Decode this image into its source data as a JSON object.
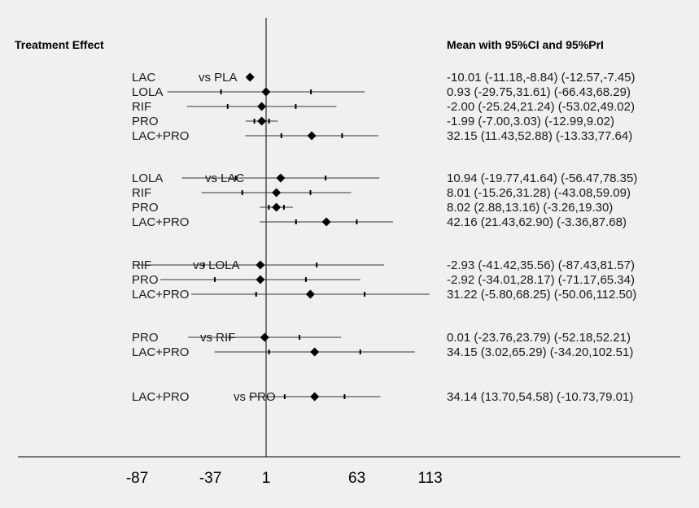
{
  "chart_data": {
    "type": "forest",
    "title": "",
    "header_left": "Treatment Effect",
    "header_right": "Mean with 95%CI and 95%PrI",
    "x_ticks": [
      {
        "value": -87,
        "label": "-87"
      },
      {
        "value": -37,
        "label": "-37"
      },
      {
        "value": 1,
        "label": "1"
      },
      {
        "value": 63,
        "label": "63"
      },
      {
        "value": 113,
        "label": "113"
      }
    ],
    "reference_line": 1,
    "groups": [
      {
        "comparator": "vs PLA",
        "rows": [
          {
            "treatment": "LAC",
            "mean": -10.01,
            "ci": [
              -11.18,
              -8.84
            ],
            "pri": [
              -12.57,
              -7.45
            ],
            "text": "-10.01 (-11.18,-8.84)  (-12.57,-7.45)"
          },
          {
            "treatment": "LOLA",
            "mean": 0.93,
            "ci": [
              -29.75,
              31.61
            ],
            "pri": [
              -66.43,
              68.29
            ],
            "text": "0.93 (-29.75,31.61)  (-66.43,68.29)"
          },
          {
            "treatment": "RIF",
            "mean": -2.0,
            "ci": [
              -25.24,
              21.24
            ],
            "pri": [
              -53.02,
              49.02
            ],
            "text": "-2.00 (-25.24,21.24)  (-53.02,49.02)"
          },
          {
            "treatment": "PRO",
            "mean": -1.99,
            "ci": [
              -7.0,
              3.03
            ],
            "pri": [
              -12.99,
              9.02
            ],
            "text": "-1.99 (-7.00,3.03)  (-12.99,9.02)"
          },
          {
            "treatment": "LAC+PRO",
            "mean": 32.15,
            "ci": [
              11.43,
              52.88
            ],
            "pri": [
              -13.33,
              77.64
            ],
            "text": "32.15 (11.43,52.88)  (-13.33,77.64)"
          }
        ]
      },
      {
        "comparator": "vs LAC",
        "rows": [
          {
            "treatment": "LOLA",
            "mean": 10.94,
            "ci": [
              -19.77,
              41.64
            ],
            "pri": [
              -56.47,
              78.35
            ],
            "text": "10.94 (-19.77,41.64)  (-56.47,78.35)"
          },
          {
            "treatment": "RIF",
            "mean": 8.01,
            "ci": [
              -15.26,
              31.28
            ],
            "pri": [
              -43.08,
              59.09
            ],
            "text": "8.01 (-15.26,31.28)  (-43.08,59.09)"
          },
          {
            "treatment": "PRO",
            "mean": 8.02,
            "ci": [
              2.88,
              13.16
            ],
            "pri": [
              -3.26,
              19.3
            ],
            "text": "8.02 (2.88,13.16)  (-3.26,19.30)"
          },
          {
            "treatment": "LAC+PRO",
            "mean": 42.16,
            "ci": [
              21.43,
              62.9
            ],
            "pri": [
              -3.36,
              87.68
            ],
            "text": "42.16 (21.43,62.90)  (-3.36,87.68)"
          }
        ]
      },
      {
        "comparator": "vs LOLA",
        "rows": [
          {
            "treatment": "RIF",
            "mean": -2.93,
            "ci": [
              -41.42,
              35.56
            ],
            "pri": [
              -87.43,
              81.57
            ],
            "text": "-2.93 (-41.42,35.56)  (-87.43,81.57)"
          },
          {
            "treatment": "PRO",
            "mean": -2.92,
            "ci": [
              -34.01,
              28.17
            ],
            "pri": [
              -71.17,
              65.34
            ],
            "text": "-2.92 (-34.01,28.17)  (-71.17,65.34)"
          },
          {
            "treatment": "LAC+PRO",
            "mean": 31.22,
            "ci": [
              -5.8,
              68.25
            ],
            "pri": [
              -50.06,
              112.5
            ],
            "text": "31.22 (-5.80,68.25)  (-50.06,112.50)"
          }
        ]
      },
      {
        "comparator": "vs RIF",
        "rows": [
          {
            "treatment": "PRO",
            "mean": 0.01,
            "ci": [
              -23.76,
              23.79
            ],
            "pri": [
              -52.18,
              52.21
            ],
            "text": "0.01 (-23.76,23.79)  (-52.18,52.21)"
          },
          {
            "treatment": "LAC+PRO",
            "mean": 34.15,
            "ci": [
              3.02,
              65.29
            ],
            "pri": [
              -34.2,
              102.51
            ],
            "text": "34.15 (3.02,65.29)  (-34.20,102.51)"
          }
        ]
      },
      {
        "comparator": "vs PRO",
        "rows": [
          {
            "treatment": "LAC+PRO",
            "mean": 34.14,
            "ci": [
              13.7,
              54.58
            ],
            "pri": [
              -10.73,
              79.01
            ],
            "text": "34.14 (13.70,54.58)  (-10.73,79.01)"
          }
        ]
      }
    ]
  }
}
